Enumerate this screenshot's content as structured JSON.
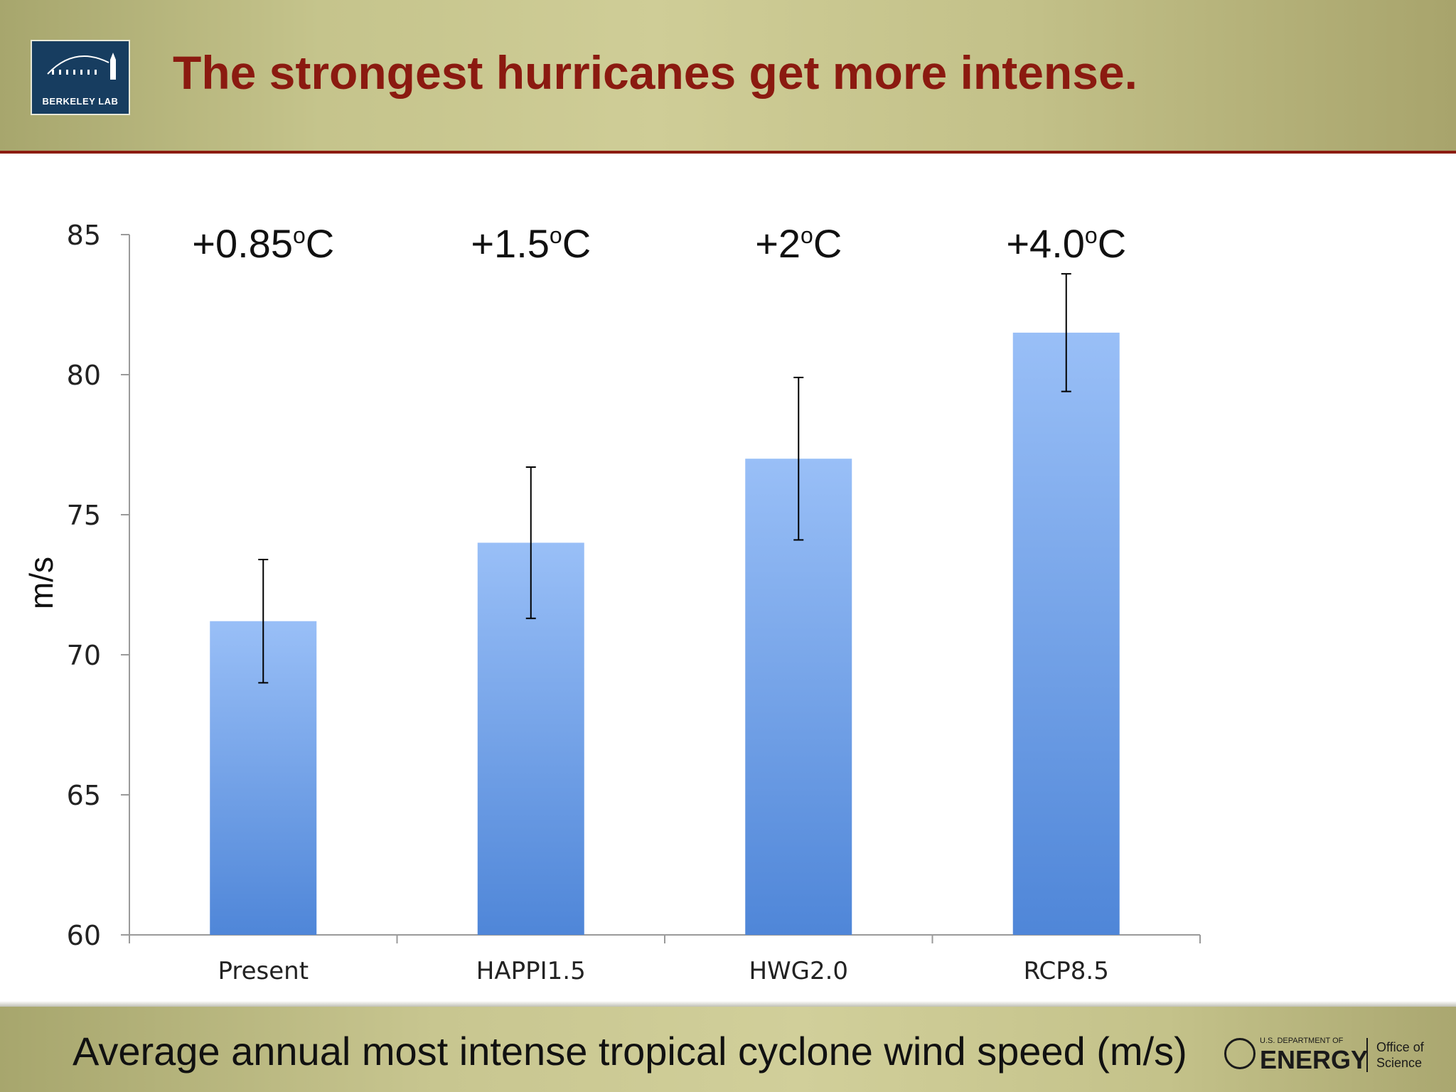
{
  "header": {
    "title": "The strongest hurricanes get more intense.",
    "logo_text": "BERKELEY LAB"
  },
  "footer": {
    "caption": "Average annual most intense tropical cyclone wind speed (m/s)",
    "doe_department": "U.S. DEPARTMENT OF",
    "doe_energy": "ENERGY",
    "doe_office": "Office of Science"
  },
  "colors": {
    "bar_top": "#99bff7",
    "bar_bottom": "#4f86d8",
    "title": "#8b1a10"
  },
  "chart_data": {
    "type": "bar",
    "categories": [
      "Present",
      "HAPPI1.5",
      "HWG2.0",
      "RCP8.5"
    ],
    "values": [
      71.2,
      74.0,
      77.0,
      81.5
    ],
    "error_low": [
      69.0,
      71.3,
      74.1,
      79.4
    ],
    "error_high": [
      73.4,
      76.7,
      79.9,
      83.6
    ],
    "warming_labels": [
      {
        "base": "+0.85",
        "sup": "o",
        "unit": "C"
      },
      {
        "base": "+1.5",
        "sup": "o",
        "unit": "C"
      },
      {
        "base": "+2",
        "sup": "o",
        "unit": "C"
      },
      {
        "base": "+4.0",
        "sup": "o",
        "unit": "C"
      }
    ],
    "ylabel": "m/s",
    "ylim": [
      60,
      85
    ],
    "yticks": [
      60,
      65,
      70,
      75,
      80,
      85
    ],
    "grid": false,
    "legend": "none"
  }
}
